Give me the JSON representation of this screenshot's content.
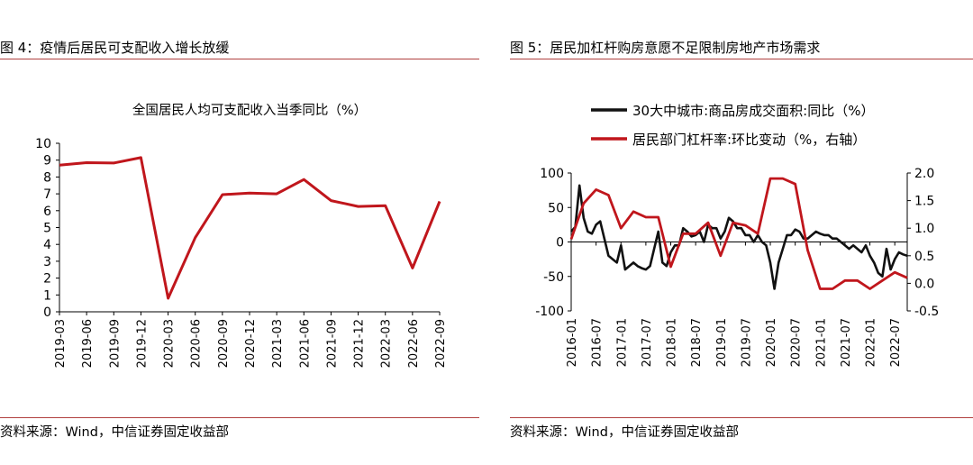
{
  "left": {
    "figure_title": "图 4：疫情后居民可支配收入增长放缓",
    "source": "资料来源：Wind，中信证券固定收益部",
    "chart_data": {
      "type": "line",
      "title": "全国居民人均可支配收入当季同比（%）",
      "xlabel": "",
      "ylabel": "",
      "ylim": [
        0,
        10
      ],
      "yticks": [
        0,
        1,
        2,
        3,
        4,
        5,
        6,
        7,
        8,
        9,
        10
      ],
      "grid": false,
      "categories": [
        "2019-03",
        "2019-06",
        "2019-09",
        "2019-12",
        "2020-03",
        "2020-06",
        "2020-09",
        "2020-12",
        "2021-03",
        "2021-06",
        "2021-09",
        "2021-12",
        "2022-03",
        "2022-06",
        "2022-09"
      ],
      "series": [
        {
          "color": "#c0161c",
          "values": [
            8.7,
            8.85,
            8.83,
            9.15,
            0.8,
            4.4,
            6.95,
            7.05,
            7.0,
            7.85,
            6.6,
            6.25,
            6.3,
            2.6,
            6.55
          ]
        }
      ]
    }
  },
  "right": {
    "figure_title": "图 5：居民加杠杆购房意愿不足限制房地产市场需求",
    "source": "资料来源：Wind，中信证券固定收益部",
    "chart_data": {
      "type": "line",
      "title": "",
      "legend_position": "top-left",
      "xlabel": "",
      "ylabel": "",
      "y_left_lim": [
        -100,
        100
      ],
      "y_left_ticks": [
        -100,
        -50,
        0,
        50,
        100
      ],
      "y_right_lim": [
        -0.5,
        2.0
      ],
      "y_right_ticks": [
        "-0.5",
        "0.0",
        "0.5",
        "1.0",
        "1.5",
        "2.0"
      ],
      "grid": false,
      "x_tick_labels": [
        "2016-01",
        "2016-07",
        "2017-01",
        "2017-07",
        "2018-01",
        "2018-07",
        "2019-01",
        "2019-07",
        "2020-01",
        "2020-07",
        "2021-01",
        "2021-07",
        "2022-01",
        "2022-07"
      ],
      "x_range": [
        "2016-01",
        "2022-10"
      ],
      "series": [
        {
          "name": "30大中城市:商品房成交面积:同比（%）",
          "color": "#111111",
          "axis": "left",
          "x": [
            "2016-01",
            "2016-02",
            "2016-03",
            "2016-04",
            "2016-05",
            "2016-06",
            "2016-07",
            "2016-08",
            "2016-09",
            "2016-10",
            "2016-11",
            "2016-12",
            "2017-01",
            "2017-02",
            "2017-03",
            "2017-04",
            "2017-05",
            "2017-06",
            "2017-07",
            "2017-08",
            "2017-09",
            "2017-10",
            "2017-11",
            "2017-12",
            "2018-01",
            "2018-02",
            "2018-03",
            "2018-04",
            "2018-05",
            "2018-06",
            "2018-07",
            "2018-08",
            "2018-09",
            "2018-10",
            "2018-11",
            "2018-12",
            "2019-01",
            "2019-02",
            "2019-03",
            "2019-04",
            "2019-05",
            "2019-06",
            "2019-07",
            "2019-08",
            "2019-09",
            "2019-10",
            "2019-11",
            "2019-12",
            "2020-01",
            "2020-02",
            "2020-03",
            "2020-04",
            "2020-05",
            "2020-06",
            "2020-07",
            "2020-08",
            "2020-09",
            "2020-10",
            "2020-11",
            "2020-12",
            "2021-01",
            "2021-02",
            "2021-03",
            "2021-04",
            "2021-05",
            "2021-06",
            "2021-07",
            "2021-08",
            "2021-09",
            "2021-10",
            "2021-11",
            "2021-12",
            "2022-01",
            "2022-02",
            "2022-03",
            "2022-04",
            "2022-05",
            "2022-06",
            "2022-07",
            "2022-08",
            "2022-09",
            "2022-10"
          ],
          "values": [
            15,
            22,
            82,
            35,
            15,
            12,
            25,
            30,
            5,
            -20,
            -25,
            -30,
            -5,
            -40,
            -35,
            -30,
            -35,
            -38,
            -40,
            -35,
            -10,
            15,
            -30,
            -35,
            -15,
            -5,
            -5,
            20,
            15,
            8,
            10,
            15,
            0,
            25,
            20,
            20,
            5,
            15,
            35,
            30,
            20,
            20,
            10,
            10,
            0,
            10,
            0,
            -5,
            -30,
            -68,
            -30,
            -10,
            10,
            10,
            18,
            15,
            5,
            5,
            10,
            15,
            12,
            10,
            10,
            5,
            5,
            0,
            -5,
            -10,
            -5,
            -10,
            -15,
            -5,
            -20,
            -30,
            -45,
            -50,
            -10,
            -40,
            -25,
            -15,
            -18,
            -20
          ]
        },
        {
          "name": "居民部门杠杆率:环比变动（%，右轴）",
          "color": "#c0161c",
          "axis": "right",
          "x": [
            "2016-01",
            "2016-04",
            "2016-07",
            "2016-10",
            "2017-01",
            "2017-04",
            "2017-07",
            "2017-10",
            "2018-01",
            "2018-04",
            "2018-07",
            "2018-10",
            "2019-01",
            "2019-04",
            "2019-07",
            "2019-10",
            "2020-01",
            "2020-04",
            "2020-07",
            "2020-10",
            "2021-01",
            "2021-04",
            "2021-07",
            "2021-10",
            "2022-01",
            "2022-04",
            "2022-07",
            "2022-10"
          ],
          "values": [
            0.8,
            1.45,
            1.7,
            1.6,
            1.0,
            1.3,
            1.2,
            1.2,
            0.3,
            0.9,
            0.9,
            1.1,
            0.5,
            1.1,
            1.05,
            0.9,
            1.9,
            1.9,
            1.8,
            0.6,
            -0.1,
            -0.1,
            0.05,
            0.05,
            -0.1,
            0.05,
            0.2,
            0.1
          ]
        }
      ]
    }
  }
}
